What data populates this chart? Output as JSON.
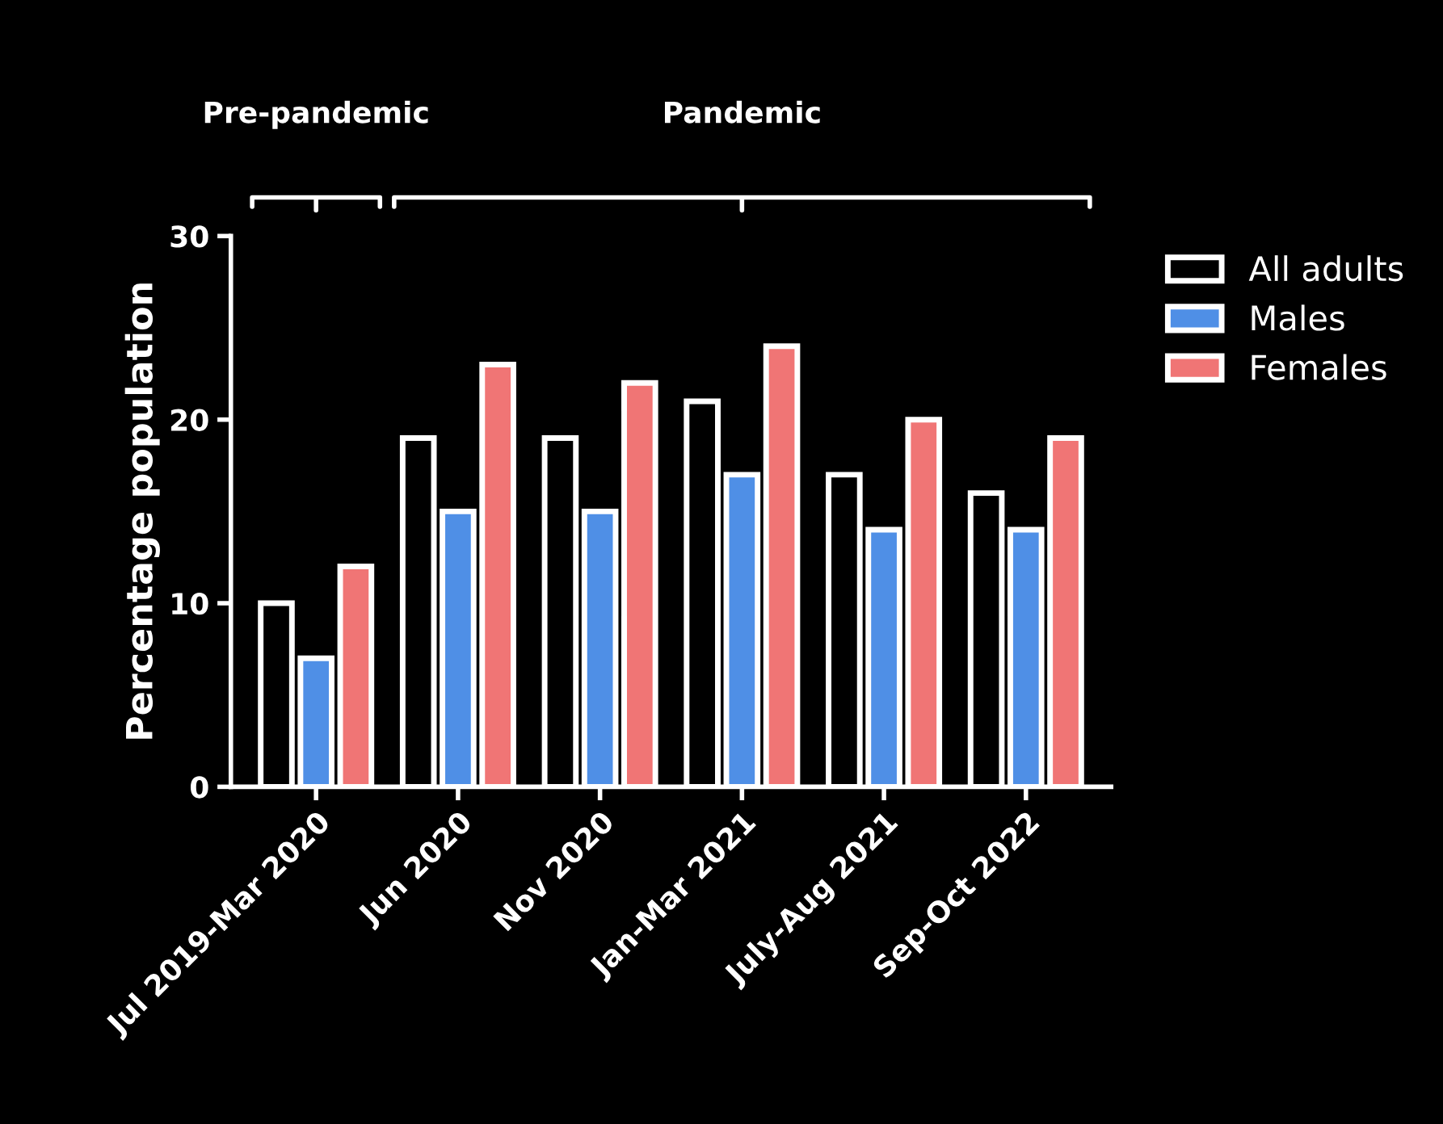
{
  "chart_data": {
    "type": "bar",
    "ylabel": "Percentage population",
    "categories": [
      "Jul 2019-Mar 2020",
      "Jun 2020",
      "Nov 2020",
      "Jan-Mar 2021",
      "July-Aug 2021",
      "Sep-Oct 2022"
    ],
    "series": [
      {
        "name": "All adults",
        "color": "#000000",
        "values": [
          10,
          19,
          19,
          21,
          17,
          16
        ]
      },
      {
        "name": "Males",
        "color": "#4f8fe6",
        "values": [
          7,
          15,
          15,
          17,
          14,
          14
        ]
      },
      {
        "name": "Females",
        "color": "#f07575",
        "values": [
          12,
          23,
          22,
          24,
          20,
          19
        ]
      }
    ],
    "ylim": [
      0,
      30
    ],
    "yticks": [
      0,
      10,
      20,
      30
    ],
    "grid": false,
    "legend": "top right",
    "annotations": [
      "Pre-pandemic",
      "Pandemic"
    ]
  }
}
